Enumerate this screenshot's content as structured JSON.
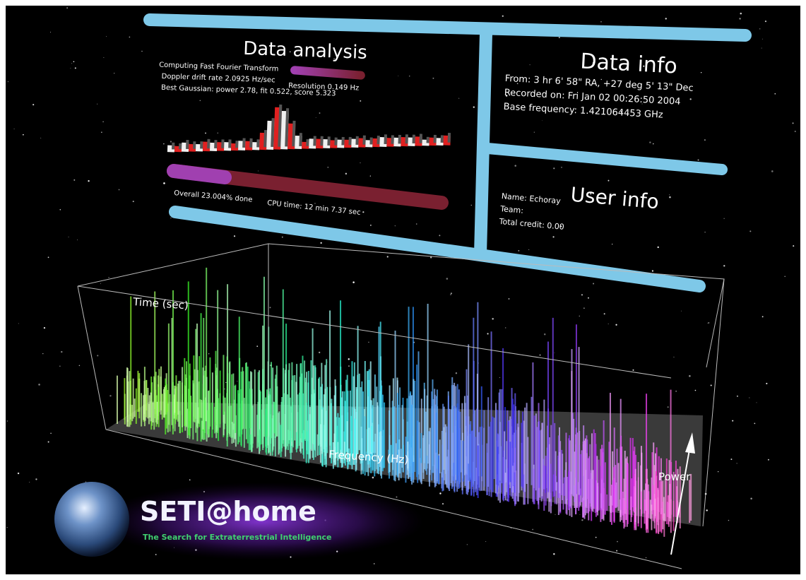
{
  "data_analysis": {
    "title": "Data analysis",
    "status": "Computing Fast Fourier Transform",
    "doppler": "Doppler drift rate 2.0925 Hz/sec",
    "resolution": "Resolution 0.149 Hz",
    "gaussian": "Best Gaussian: power 2.78, fit 0.522, score 5.323",
    "overall": "Overall 23.004% done",
    "cpu_time": "CPU time: 12 min 7.37 sec"
  },
  "data_info": {
    "title": "Data info",
    "from": "From:  3 hr  6' 58\" RA, +27 deg  5' 13\" Dec",
    "recorded": "Recorded on: Fri Jan 02 00:26:50 2004",
    "base_frequency": "Base frequency: 1.421064453 GHz"
  },
  "user_info": {
    "title": "User info",
    "name": "Name: Echoray",
    "team": "Team:",
    "credit": "Total credit: 0.00"
  },
  "graph": {
    "time_axis": "Time (sec)",
    "frequency_axis": "Frequency (Hz)",
    "power_axis": "Power"
  },
  "logo": {
    "title": "SETI@home",
    "subtitle": "The Search for Extraterrestrial Intelligence"
  }
}
